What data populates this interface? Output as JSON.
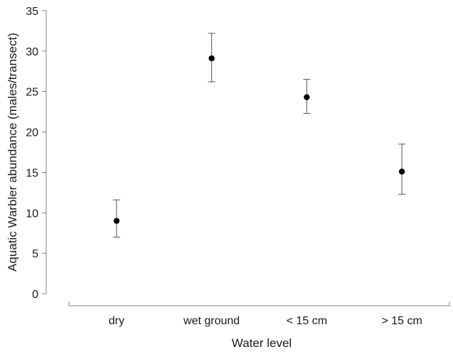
{
  "chart_data": {
    "type": "scatter",
    "xlabel": "Water level",
    "ylabel": "Aquatic Warbler abundance (males/transect)",
    "categories": [
      "dry",
      "wet ground",
      "< 15 cm",
      "> 15 cm"
    ],
    "values": [
      9.0,
      29.1,
      24.3,
      15.1
    ],
    "error_low": [
      7.0,
      26.2,
      22.3,
      12.3
    ],
    "error_high": [
      11.6,
      32.2,
      26.5,
      18.5
    ],
    "ylim": [
      0,
      35
    ],
    "yticks": [
      0,
      5,
      10,
      15,
      20,
      25,
      30,
      35
    ],
    "grid": false,
    "legend": "none",
    "marker_color": "#000000",
    "errorbar_color": "#555555",
    "axis_color": "#7f7f7f"
  }
}
